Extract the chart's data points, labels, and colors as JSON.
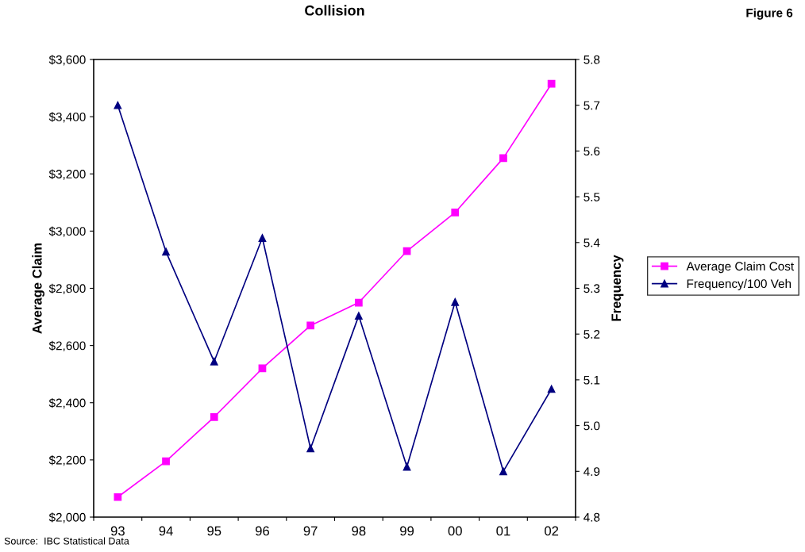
{
  "chart_data": {
    "type": "line",
    "title": "Collision",
    "ylabel": "Average Claim",
    "y2label": "Frequency",
    "annotations": [
      "Figure 6",
      "Source:  IBC Statistical Data"
    ],
    "categories": [
      "93",
      "94",
      "95",
      "96",
      "97",
      "98",
      "99",
      "00",
      "01",
      "02"
    ],
    "series": [
      {
        "name": "Average Claim Cost",
        "color": "#ff00ff",
        "marker": "square",
        "values": [
          2070,
          2195,
          2350,
          2520,
          2670,
          2750,
          2930,
          3065,
          3255,
          3515
        ]
      },
      {
        "name": "Frequency/100 Veh",
        "color": "#000080",
        "marker": "triangle",
        "axis": "y2",
        "values": [
          5.7,
          5.38,
          5.14,
          5.41,
          4.95,
          5.24,
          4.91,
          5.27,
          4.9,
          5.08
        ]
      }
    ],
    "ylim": [
      2000,
      3600
    ],
    "yticks": [
      {
        "value": 2000,
        "label": "$2,000"
      },
      {
        "value": 2200,
        "label": "$2,200"
      },
      {
        "value": 2400,
        "label": "$2,400"
      },
      {
        "value": 2600,
        "label": "$2,600"
      },
      {
        "value": 2800,
        "label": "$2,800"
      },
      {
        "value": 3000,
        "label": "$3,000"
      },
      {
        "value": 3200,
        "label": "$3,200"
      },
      {
        "value": 3400,
        "label": "$3,400"
      },
      {
        "value": 3600,
        "label": "$3,600"
      }
    ],
    "y2lim": [
      4.8,
      5.8
    ],
    "y2ticks": [
      {
        "value": 4.8,
        "label": "4.8"
      },
      {
        "value": 4.9,
        "label": "4.9"
      },
      {
        "value": 5.0,
        "label": "5.0"
      },
      {
        "value": 5.1,
        "label": "5.1"
      },
      {
        "value": 5.2,
        "label": "5.2"
      },
      {
        "value": 5.3,
        "label": "5.3"
      },
      {
        "value": 5.4,
        "label": "5.4"
      },
      {
        "value": 5.5,
        "label": "5.5"
      },
      {
        "value": 5.6,
        "label": "5.6"
      },
      {
        "value": 5.7,
        "label": "5.7"
      },
      {
        "value": 5.8,
        "label": "5.8"
      }
    ],
    "grid": false,
    "legend": "right",
    "line_style": "solid"
  }
}
